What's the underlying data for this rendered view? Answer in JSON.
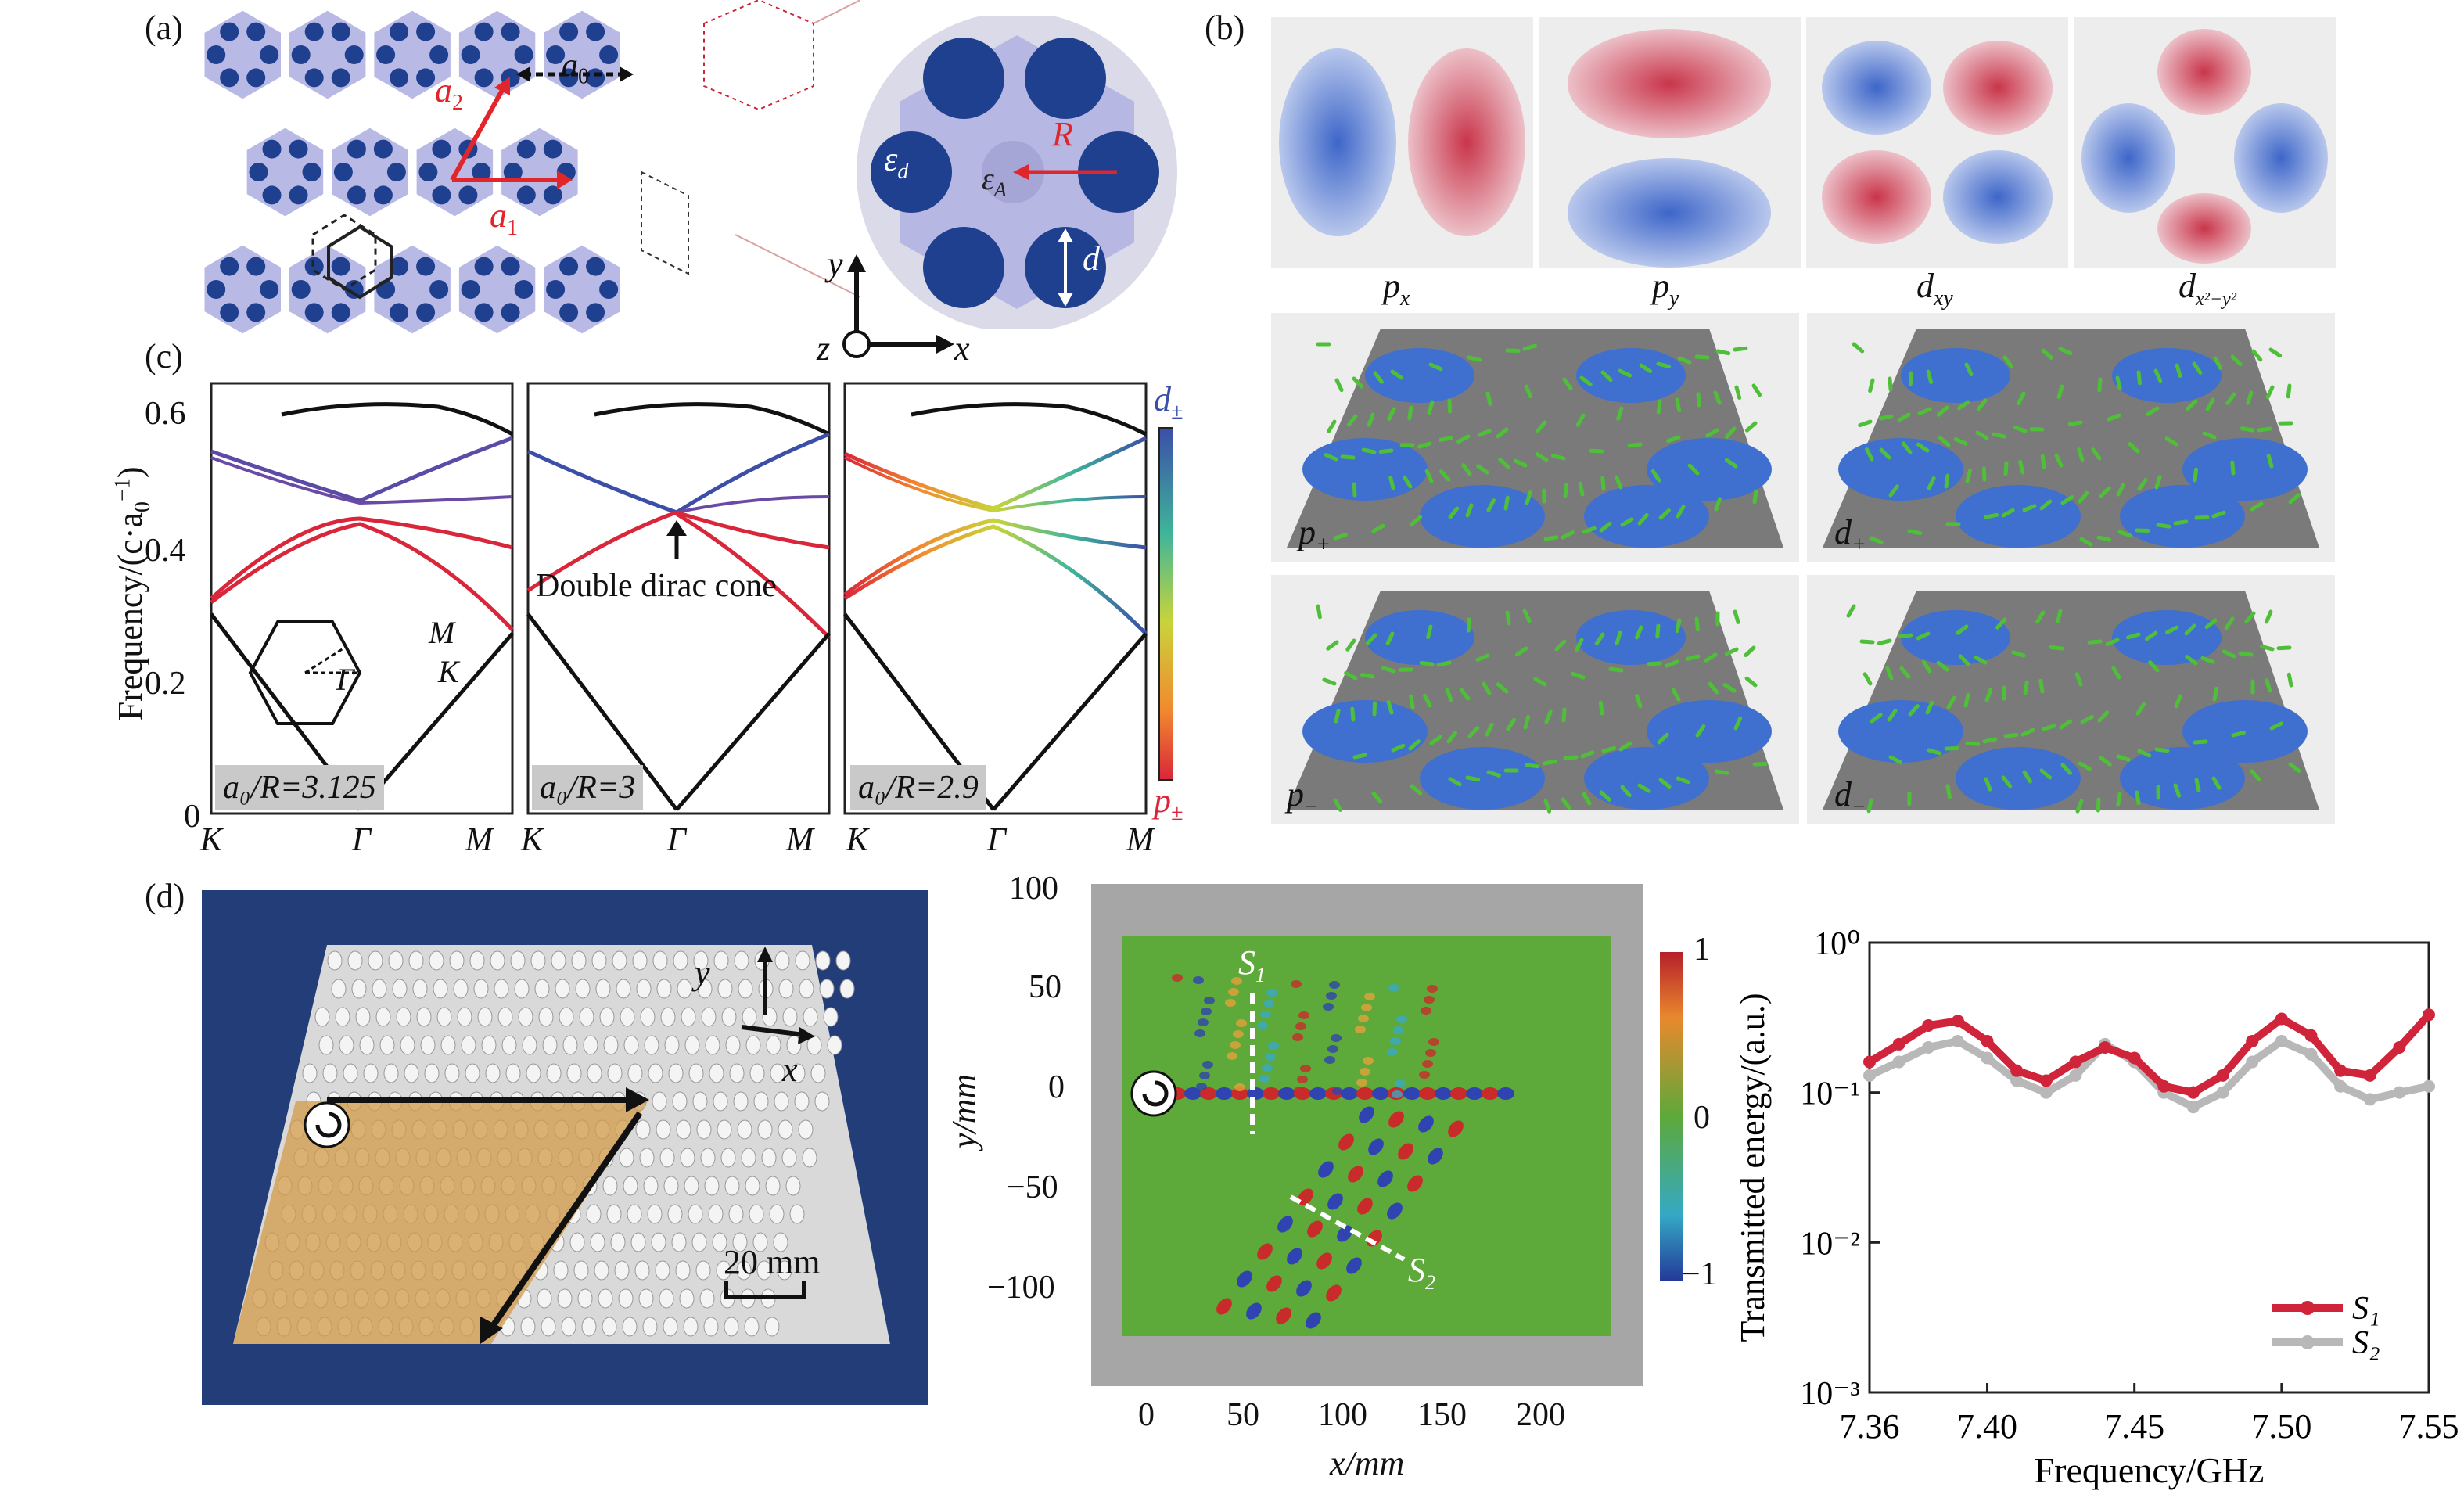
{
  "panels": {
    "a": "(a)",
    "b": "(b)",
    "c": "(c)",
    "d": "(d)"
  },
  "panel_a": {
    "a0": "a",
    "a0_sub": "0",
    "a1": "a",
    "a1_sub": "1",
    "a2": "a",
    "a2_sub": "2",
    "eps_d": "ε",
    "eps_d_sub": "d",
    "eps_A": "ε",
    "eps_A_sub": "A",
    "R": "R",
    "d": "d",
    "axis_y": "y",
    "axis_z": "z",
    "axis_x": "x",
    "colors": {
      "hex_fill": "#b9b9e6",
      "rod": "#1f3f8f",
      "arrow_red": "#e0262a"
    }
  },
  "panel_b": {
    "top_labels": [
      {
        "main": "p",
        "sub": "x"
      },
      {
        "main": "p",
        "sub": "y"
      },
      {
        "main": "d",
        "sub": "xy"
      },
      {
        "main": "d",
        "sub": "x²−y²"
      }
    ],
    "mid_labels": [
      {
        "main": "p",
        "sub": "+"
      },
      {
        "main": "d",
        "sub": "+"
      }
    ],
    "bot_labels": [
      {
        "main": "p",
        "sub": "−"
      },
      {
        "main": "d",
        "sub": "−"
      }
    ]
  },
  "panel_c": {
    "ylabel": "Frequency/(c·a",
    "ylabel_sub": "0",
    "ylabel_sup": "−1",
    "ylabel_end": ")",
    "yticks": [
      "0.6",
      "0.4",
      "0.2",
      "0"
    ],
    "xticks": [
      "K",
      "Γ",
      "M"
    ],
    "case_labels": [
      "a₀/R=3.125",
      "a₀/R=3",
      "a₀/R=2.9"
    ],
    "annotation": "Double dirac cone",
    "inset": {
      "M": "M",
      "K": "K",
      "G": "Γ"
    },
    "colorbar": {
      "top": "d",
      "top_sub": "±",
      "bottom": "p",
      "bottom_sub": "±"
    }
  },
  "panel_d": {
    "photo_axis_y": "y",
    "photo_axis_x": "x",
    "scale_bar": "20 mm",
    "field": {
      "ylabel": "y/mm",
      "xlabel": "x/mm",
      "yticks": [
        "100",
        "50",
        "0",
        "−50",
        "−100"
      ],
      "xticks": [
        "0",
        "50",
        "100",
        "150",
        "200"
      ],
      "S1": "S",
      "S1_sub": "1",
      "S2": "S",
      "S2_sub": "2",
      "cbar_ticks": [
        "1",
        "0",
        "−1"
      ]
    }
  },
  "chart_data": [
    {
      "type": "line",
      "ylabel": "Transmitted energy/(a.u.)",
      "xlabel": "Frequency/GHz",
      "x_ticks": [
        "7.36",
        "7.40",
        "7.45",
        "7.50",
        "7.55"
      ],
      "y_ticks": [
        "10⁰",
        "10⁻¹",
        "10⁻²",
        "10⁻³"
      ],
      "xlim": [
        7.36,
        7.55
      ],
      "ylim_log10": [
        -3,
        0
      ],
      "y_scale": "log",
      "legend_position": "bottom-right",
      "series": [
        {
          "name": "S₁",
          "color": "#d0243a",
          "x": [
            7.36,
            7.37,
            7.38,
            7.39,
            7.4,
            7.41,
            7.42,
            7.43,
            7.44,
            7.45,
            7.46,
            7.47,
            7.48,
            7.49,
            7.5,
            7.51,
            7.52,
            7.53,
            7.54,
            7.55
          ],
          "y": [
            0.16,
            0.21,
            0.28,
            0.3,
            0.22,
            0.14,
            0.12,
            0.16,
            0.2,
            0.17,
            0.11,
            0.1,
            0.13,
            0.22,
            0.31,
            0.24,
            0.14,
            0.13,
            0.2,
            0.33
          ]
        },
        {
          "name": "S₂",
          "color": "#b8b8b8",
          "x": [
            7.36,
            7.37,
            7.38,
            7.39,
            7.4,
            7.41,
            7.42,
            7.43,
            7.44,
            7.45,
            7.46,
            7.47,
            7.48,
            7.49,
            7.5,
            7.51,
            7.52,
            7.53,
            7.54,
            7.55
          ],
          "y": [
            0.13,
            0.16,
            0.2,
            0.22,
            0.17,
            0.12,
            0.1,
            0.13,
            0.21,
            0.16,
            0.1,
            0.08,
            0.1,
            0.16,
            0.22,
            0.18,
            0.11,
            0.09,
            0.1,
            0.11
          ]
        }
      ]
    }
  ]
}
